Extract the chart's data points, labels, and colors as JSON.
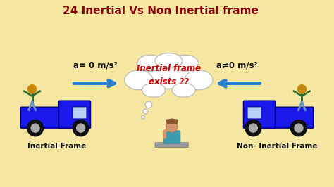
{
  "bg_color": "#f5e6a0",
  "title": "24 Inertial Vs Non Inertial frame",
  "title_color": "#8b0000",
  "title_fontsize": 11,
  "left_label": "a= 0 m/s²",
  "right_label": "a≠0 m/s²",
  "left_caption": "Inertial Frame",
  "right_caption": "Non- Inertial Frame",
  "cloud_text": "Inertial frame\nexists ??",
  "cloud_text_color": "#cc0000",
  "truck_color": "#1a1aee",
  "arrow_color": "#2a7fd4",
  "skin_color": "#c8860a",
  "shirt_color": "#2d6b2d",
  "pants_color": "#6699cc"
}
